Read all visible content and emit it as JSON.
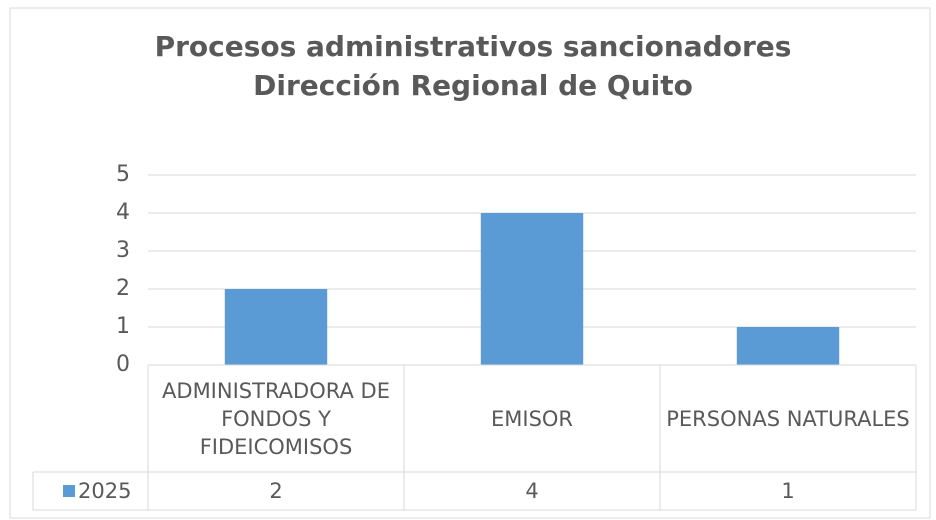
{
  "chart_data": {
    "type": "bar",
    "title": [
      "Procesos administrativos sancionadores",
      "Dirección Regional de Quito"
    ],
    "categories": [
      "ADMINISTRADORA DE FONDOS Y FIDEICOMISOS",
      "EMISOR",
      "PERSONAS NATURALES"
    ],
    "series": [
      {
        "name": "2025",
        "color": "#5b9bd5",
        "values": [
          2,
          4,
          1
        ]
      }
    ],
    "ylim": [
      0,
      5
    ],
    "yticks": [
      0,
      1,
      2,
      3,
      4,
      5
    ],
    "grid": true,
    "data_table": true
  }
}
